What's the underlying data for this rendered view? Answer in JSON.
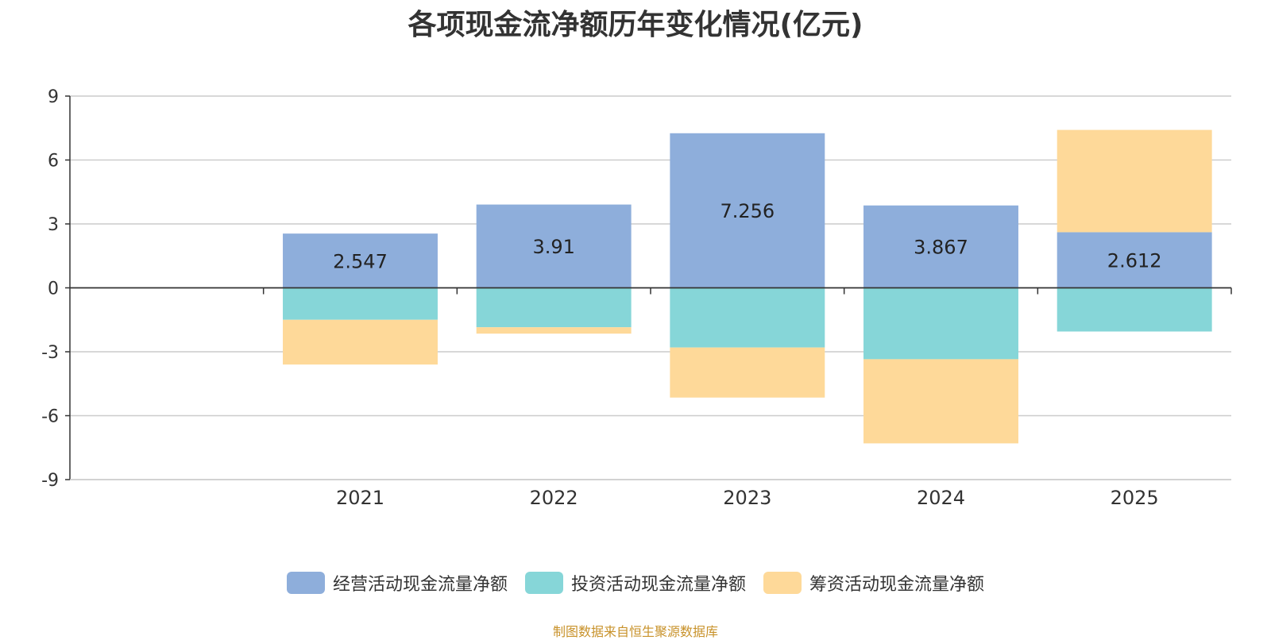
{
  "chart_data": {
    "type": "bar",
    "stacked": true,
    "title": "各项现金流净额历年变化情况(亿元)",
    "categories": [
      "2021",
      "2022",
      "2023",
      "2024",
      "2025"
    ],
    "series": [
      {
        "name": "经营活动现金流量净额",
        "color": "#8eaedb",
        "values": [
          2.547,
          3.91,
          7.256,
          3.867,
          2.612
        ],
        "labels": [
          "2.547",
          "3.91",
          "7.256",
          "3.867",
          "2.612"
        ]
      },
      {
        "name": "投资活动现金流量净额",
        "color": "#86d6d8",
        "values": [
          -1.5,
          -1.85,
          -2.8,
          -3.35,
          -2.05
        ]
      },
      {
        "name": "筹资活动现金流量净额",
        "color": "#fed999",
        "values": [
          -2.1,
          -0.3,
          -2.35,
          -3.95,
          4.8
        ]
      }
    ],
    "yticks": [
      "9",
      "6",
      "3",
      "0",
      "-3",
      "-6",
      "-9"
    ],
    "ylim": [
      -9,
      9
    ],
    "grid": true,
    "legend": "bottom-center"
  },
  "source": "制图数据来自恒生聚源数据库"
}
